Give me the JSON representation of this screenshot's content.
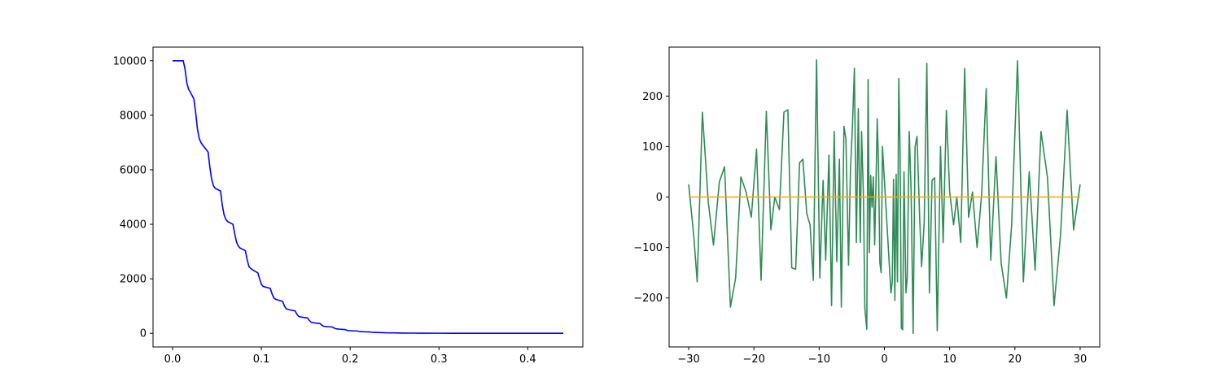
{
  "chart_data": [
    {
      "type": "line",
      "title": "",
      "xlabel": "",
      "ylabel": "",
      "xlim": [
        -0.022,
        0.462
      ],
      "ylim": [
        -500,
        10500
      ],
      "xticks": [
        0.0,
        0.1,
        0.2,
        0.3,
        0.4
      ],
      "xtick_labels": [
        "0.0",
        "0.1",
        "0.2",
        "0.3",
        "0.4"
      ],
      "yticks": [
        0,
        2000,
        4000,
        6000,
        8000,
        10000
      ],
      "ytick_labels": [
        "0",
        "2000",
        "4000",
        "6000",
        "8000",
        "10000"
      ],
      "grid": false,
      "series": [
        {
          "color": "#0000ff",
          "x": [
            0.0,
            0.012,
            0.014,
            0.016,
            0.018,
            0.02,
            0.024,
            0.026,
            0.028,
            0.03,
            0.032,
            0.034,
            0.04,
            0.042,
            0.044,
            0.046,
            0.048,
            0.054,
            0.056,
            0.058,
            0.06,
            0.062,
            0.068,
            0.07,
            0.072,
            0.074,
            0.076,
            0.082,
            0.084,
            0.086,
            0.088,
            0.09,
            0.096,
            0.098,
            0.1,
            0.102,
            0.104,
            0.11,
            0.112,
            0.114,
            0.116,
            0.118,
            0.124,
            0.126,
            0.128,
            0.13,
            0.132,
            0.138,
            0.14,
            0.142,
            0.144,
            0.146,
            0.152,
            0.154,
            0.156,
            0.158,
            0.16,
            0.166,
            0.168,
            0.17,
            0.172,
            0.174,
            0.18,
            0.182,
            0.184,
            0.186,
            0.188,
            0.194,
            0.196,
            0.198,
            0.2,
            0.202,
            0.208,
            0.21,
            0.212,
            0.214,
            0.216,
            0.222,
            0.224,
            0.226,
            0.228,
            0.23,
            0.236,
            0.24,
            0.25,
            0.26,
            0.27,
            0.28,
            0.3,
            0.32,
            0.35,
            0.4,
            0.44
          ],
          "y": [
            10000,
            10000,
            9700,
            9200,
            8950,
            8850,
            8600,
            8100,
            7500,
            7150,
            7000,
            6900,
            6650,
            6100,
            5650,
            5420,
            5320,
            5220,
            4700,
            4350,
            4180,
            4100,
            4000,
            3650,
            3350,
            3200,
            3130,
            3030,
            2700,
            2450,
            2380,
            2330,
            2220,
            2000,
            1800,
            1720,
            1700,
            1650,
            1450,
            1300,
            1250,
            1230,
            1170,
            1000,
            900,
            880,
            860,
            820,
            700,
            620,
            600,
            590,
            560,
            470,
            410,
            390,
            380,
            360,
            300,
            260,
            250,
            245,
            230,
            190,
            165,
            158,
            152,
            140,
            115,
            100,
            96,
            92,
            85,
            70,
            62,
            58,
            55,
            50,
            40,
            34,
            32,
            30,
            25,
            20,
            15,
            10,
            7,
            5,
            3,
            2,
            1,
            0,
            0
          ]
        }
      ]
    },
    {
      "type": "line",
      "title": "",
      "xlabel": "",
      "ylabel": "",
      "xlim": [
        -33.0,
        33.0
      ],
      "ylim": [
        -297,
        297
      ],
      "xticks": [
        -30,
        -20,
        -10,
        0,
        10,
        20,
        30
      ],
      "xtick_labels": [
        "−30",
        "−20",
        "−10",
        "0",
        "10",
        "20",
        "30"
      ],
      "yticks": [
        -200,
        -100,
        0,
        100,
        200
      ],
      "ytick_labels": [
        "−200",
        "−100",
        "0",
        "100",
        "200"
      ],
      "grid": false,
      "series": [
        {
          "color": "#2e8b57",
          "x": [
            -30.0,
            -29.2,
            -28.7,
            -27.9,
            -27.0,
            -26.2,
            -25.3,
            -24.5,
            -23.6,
            -22.8,
            -22.0,
            -21.2,
            -20.4,
            -19.6,
            -18.9,
            -18.1,
            -17.4,
            -16.8,
            -16.1,
            -15.4,
            -14.8,
            -14.2,
            -13.6,
            -13.0,
            -12.5,
            -11.9,
            -11.4,
            -10.9,
            -10.4,
            -9.9,
            -9.4,
            -9.0,
            -8.5,
            -8.1,
            -7.7,
            -7.3,
            -6.9,
            -6.6,
            -6.2,
            -5.9,
            -5.5,
            -5.2,
            -4.9,
            -4.6,
            -4.3,
            -4.0,
            -3.7,
            -3.5,
            -3.2,
            -3.0,
            -2.7,
            -2.5,
            -2.3,
            -2.1,
            -1.9,
            -1.7,
            -1.5,
            -1.3,
            -1.1,
            -0.9,
            -0.7,
            -0.5,
            -0.3,
            1.0,
            1.2,
            1.4,
            1.6,
            1.8,
            2.0,
            2.2,
            2.4,
            2.6,
            2.8,
            3.0,
            3.3,
            3.5,
            3.8,
            4.1,
            4.4,
            4.7,
            5.0,
            5.4,
            5.7,
            6.1,
            6.5,
            6.9,
            7.3,
            7.7,
            8.1,
            8.6,
            9.0,
            9.5,
            10.0,
            10.6,
            11.1,
            11.7,
            12.3,
            12.9,
            13.5,
            14.2,
            14.9,
            15.6,
            16.3,
            17.1,
            17.9,
            18.7,
            19.5,
            20.4,
            21.3,
            22.2,
            23.1,
            24.0,
            25.0,
            26.0,
            27.0,
            28.0,
            29.0,
            30.0
          ],
          "y": [
            25,
            -80,
            -168,
            168,
            -10,
            -95,
            30,
            60,
            -218,
            -160,
            40,
            10,
            -40,
            95,
            -165,
            170,
            -65,
            0,
            -25,
            168,
            173,
            -140,
            -143,
            68,
            75,
            -33,
            -55,
            -165,
            272,
            -160,
            33,
            -125,
            83,
            -215,
            130,
            -128,
            75,
            -218,
            140,
            115,
            -135,
            55,
            140,
            255,
            -90,
            175,
            -90,
            130,
            -5,
            -220,
            -262,
            233,
            -110,
            43,
            -20,
            40,
            -95,
            20,
            155,
            60,
            -130,
            -150,
            100,
            -190,
            -168,
            35,
            -205,
            45,
            -168,
            235,
            90,
            -260,
            -263,
            50,
            -190,
            -160,
            130,
            8,
            -270,
            100,
            120,
            -40,
            -138,
            -50,
            265,
            -190,
            33,
            38,
            -265,
            100,
            -90,
            172,
            10,
            -55,
            0,
            -90,
            255,
            -40,
            10,
            -100,
            5,
            215,
            -125,
            80,
            -132,
            -200,
            -55,
            270,
            -168,
            50,
            -145,
            130,
            38,
            -215,
            -75,
            172,
            -65,
            25
          ]
        },
        {
          "color": "#ffa500",
          "x": [
            -30,
            30
          ],
          "y": [
            0,
            0
          ]
        }
      ]
    }
  ]
}
